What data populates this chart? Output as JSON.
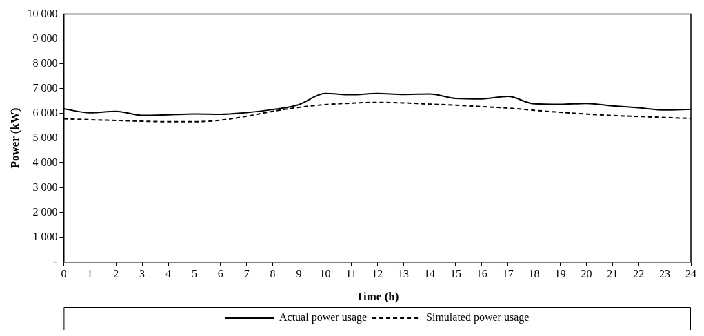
{
  "chart_data": {
    "type": "line",
    "xlabel": "Time (h)",
    "ylabel": "Power (kW)",
    "x": [
      0,
      1,
      2,
      3,
      4,
      5,
      6,
      7,
      8,
      9,
      10,
      11,
      12,
      13,
      14,
      15,
      16,
      17,
      18,
      19,
      20,
      21,
      22,
      23,
      24
    ],
    "series": [
      {
        "name": "Actual power usage",
        "color": "#000000",
        "line_style": "solid",
        "values": [
          6180,
          6020,
          6080,
          5920,
          5940,
          5970,
          5960,
          6030,
          6150,
          6350,
          6800,
          6750,
          6800,
          6760,
          6780,
          6600,
          6580,
          6680,
          6380,
          6360,
          6400,
          6300,
          6220,
          6130,
          6160
        ]
      },
      {
        "name": "Simulated power usage",
        "color": "#000000",
        "line_style": "dashed",
        "values": [
          5780,
          5740,
          5710,
          5680,
          5660,
          5660,
          5720,
          5880,
          6080,
          6240,
          6350,
          6410,
          6440,
          6420,
          6370,
          6330,
          6270,
          6210,
          6120,
          6040,
          5970,
          5910,
          5870,
          5830,
          5790
        ]
      }
    ],
    "xlim": [
      0,
      24
    ],
    "xticks": [
      0,
      1,
      2,
      3,
      4,
      5,
      6,
      7,
      8,
      9,
      10,
      11,
      12,
      13,
      14,
      15,
      16,
      17,
      18,
      19,
      20,
      21,
      22,
      23,
      24
    ],
    "ylim": [
      0,
      10000
    ],
    "yticks": [
      {
        "value": 0,
        "label": "-"
      },
      {
        "value": 1000,
        "label": "1 000"
      },
      {
        "value": 2000,
        "label": "2 000"
      },
      {
        "value": 3000,
        "label": "3 000"
      },
      {
        "value": 4000,
        "label": "4 000"
      },
      {
        "value": 5000,
        "label": "5 000"
      },
      {
        "value": 6000,
        "label": "6 000"
      },
      {
        "value": 7000,
        "label": "7 000"
      },
      {
        "value": 8000,
        "label": "8 000"
      },
      {
        "value": 9000,
        "label": "9 000"
      },
      {
        "value": 10000,
        "label": "10 000"
      }
    ],
    "grid": false,
    "legend": "bottom",
    "marker": "none"
  }
}
